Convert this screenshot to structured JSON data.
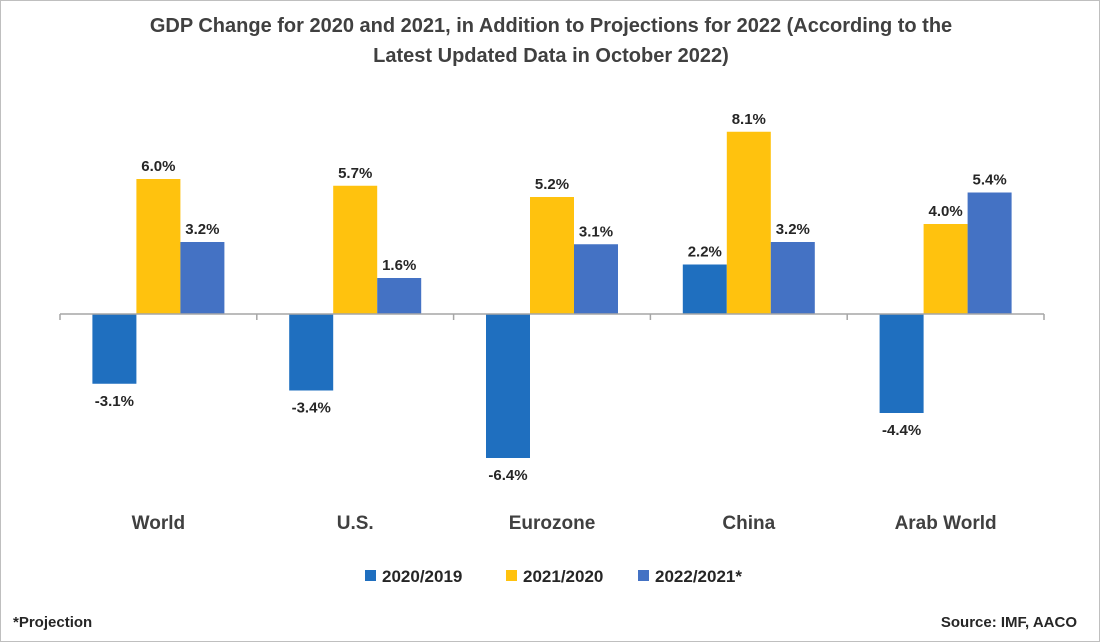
{
  "chart_data": {
    "type": "bar",
    "title_lines": [
      "GDP Change for 2020 and 2021, in Addition to Projections for 2022 (According to the",
      "Latest Updated Data in October 2022)"
    ],
    "categories": [
      "World",
      "U.S.",
      "Eurozone",
      "China",
      "Arab World"
    ],
    "series": [
      {
        "name": "2020/2019",
        "values": [
          -3.1,
          -3.4,
          -6.4,
          2.2,
          -4.4
        ],
        "labels": [
          "-3.1%",
          "-3.4%",
          "-6.4%",
          "2.2%",
          "-4.4%"
        ],
        "color": "#1f6fbf"
      },
      {
        "name": "2021/2020",
        "values": [
          6.0,
          5.7,
          5.2,
          8.1,
          4.0
        ],
        "labels": [
          "6.0%",
          "5.7%",
          "5.2%",
          "8.1%",
          "4.0%"
        ],
        "color": "#ffc20e"
      },
      {
        "name": "2022/2021*",
        "values": [
          3.2,
          1.6,
          3.1,
          3.2,
          5.4
        ],
        "labels": [
          "3.2%",
          "1.6%",
          "3.1%",
          "3.2%",
          "5.4%"
        ],
        "color": "#4472c4"
      }
    ],
    "ylim": [
      -8,
      10
    ],
    "grid": false,
    "legend_position": "bottom"
  },
  "footnote": "*Projection",
  "source": "Source: IMF, AACO"
}
